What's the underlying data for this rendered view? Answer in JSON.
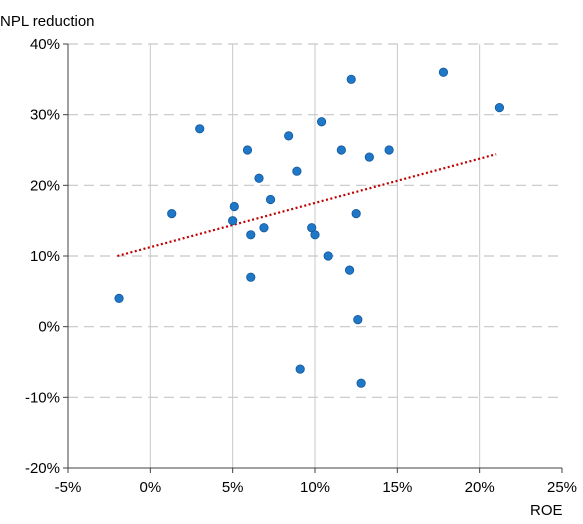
{
  "chart_data": {
    "type": "scatter",
    "title": "",
    "xlabel": "ROE",
    "ylabel": "NPL reduction",
    "xlim": [
      -5,
      25
    ],
    "ylim": [
      -20,
      40
    ],
    "x_ticks": [
      -5,
      0,
      5,
      10,
      15,
      20,
      25
    ],
    "y_ticks": [
      -20,
      -10,
      0,
      10,
      20,
      30,
      40
    ],
    "x_tick_labels": [
      "-5%",
      "0%",
      "5%",
      "10%",
      "15%",
      "20%",
      "25%"
    ],
    "y_tick_labels": [
      "-20%",
      "-10%",
      "0%",
      "10%",
      "20%",
      "30%",
      "40%"
    ],
    "grid": {
      "x": "solid",
      "y": "dashed"
    },
    "legend": "none",
    "series": [
      {
        "values": [
          {
            "x": -1.9,
            "y": 4
          },
          {
            "x": 1.3,
            "y": 16
          },
          {
            "x": 3.0,
            "y": 28
          },
          {
            "x": 5.0,
            "y": 15
          },
          {
            "x": 5.1,
            "y": 17
          },
          {
            "x": 5.9,
            "y": 25
          },
          {
            "x": 6.1,
            "y": 13
          },
          {
            "x": 6.1,
            "y": 7
          },
          {
            "x": 6.6,
            "y": 21
          },
          {
            "x": 6.9,
            "y": 14
          },
          {
            "x": 7.3,
            "y": 18
          },
          {
            "x": 8.4,
            "y": 27
          },
          {
            "x": 8.9,
            "y": 22
          },
          {
            "x": 9.1,
            "y": -6
          },
          {
            "x": 9.8,
            "y": 14
          },
          {
            "x": 10.0,
            "y": 13
          },
          {
            "x": 10.4,
            "y": 29
          },
          {
            "x": 10.8,
            "y": 10
          },
          {
            "x": 11.6,
            "y": 25
          },
          {
            "x": 12.1,
            "y": 8
          },
          {
            "x": 12.2,
            "y": 35
          },
          {
            "x": 12.5,
            "y": 16
          },
          {
            "x": 12.6,
            "y": 1
          },
          {
            "x": 12.8,
            "y": -8
          },
          {
            "x": 13.3,
            "y": 24
          },
          {
            "x": 14.5,
            "y": 25
          },
          {
            "x": 17.8,
            "y": 36
          },
          {
            "x": 21.2,
            "y": 31
          }
        ]
      }
    ],
    "trendline": {
      "x_start": -2.0,
      "y_start": 10.0,
      "x_end": 21.0,
      "y_end": 24.4
    },
    "colors": {
      "point_fill": "#1f77c8",
      "point_stroke": "#14589a",
      "trendline": "#c00000",
      "grid": "#c8c8c8",
      "axis": "#404040",
      "text": "#000000"
    }
  }
}
